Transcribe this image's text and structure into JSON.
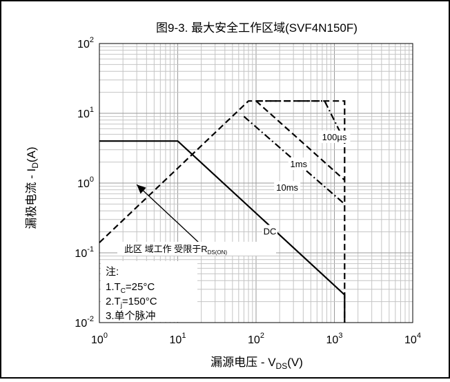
{
  "chart_data": {
    "type": "line",
    "title": "图9-3. 最大安全工作区域(SVF4N150F)",
    "xscale": "log",
    "yscale": "log",
    "xlim": [
      1,
      10000
    ],
    "ylim": [
      0.01,
      100
    ],
    "grid": true,
    "x_ticks": [
      {
        "value": 1,
        "base": "10",
        "exp": "0"
      },
      {
        "value": 10,
        "base": "10",
        "exp": "1"
      },
      {
        "value": 100,
        "base": "10",
        "exp": "2"
      },
      {
        "value": 1000,
        "base": "10",
        "exp": "3"
      },
      {
        "value": 10000,
        "base": "10",
        "exp": "4"
      }
    ],
    "y_ticks": [
      {
        "value": 0.01,
        "base": "10",
        "exp": "-2"
      },
      {
        "value": 0.1,
        "base": "10",
        "exp": "-1"
      },
      {
        "value": 1,
        "base": "10",
        "exp": "0"
      },
      {
        "value": 10,
        "base": "10",
        "exp": "1"
      },
      {
        "value": 100,
        "base": "10",
        "exp": "2"
      }
    ],
    "xlabel": {
      "pre": "漏源电压 - V",
      "sub": "DS",
      "post": "(V)"
    },
    "ylabel": {
      "pre": "漏极电流 - I",
      "sub": "D",
      "post": "(A)"
    },
    "series": [
      {
        "name": "DC",
        "style": "solid",
        "x": [
          1,
          10,
          1350,
          1350
        ],
        "y": [
          4,
          4,
          0.025,
          0.01
        ]
      },
      {
        "name": "10ms",
        "style": "dashdot",
        "x": [
          70,
          1350
        ],
        "y": [
          9,
          0.5
        ]
      },
      {
        "name": "1ms",
        "style": "dashed",
        "x": [
          100,
          1350
        ],
        "y": [
          15,
          1.1
        ]
      },
      {
        "name": "100µs",
        "style": "dashdot",
        "x": [
          100,
          750,
          1350
        ],
        "y": [
          15,
          15,
          4
        ]
      },
      {
        "name": "",
        "style": "dashed",
        "x": [
          1,
          80,
          1350,
          1350
        ],
        "y": [
          0.14,
          15,
          15,
          0.01
        ]
      }
    ],
    "annotations": [
      {
        "key": "label_100us",
        "text": "100µs",
        "x": 1000,
        "y": 4.5
      },
      {
        "key": "label_1ms",
        "text": "1ms",
        "x": 350,
        "y": 1.85
      },
      {
        "key": "label_10ms",
        "text": "10ms",
        "x": 250,
        "y": 0.85
      },
      {
        "key": "label_dc",
        "text": "DC",
        "x": 150,
        "y": 0.2
      }
    ],
    "rds_note": {
      "pre": "此区 域工作 受限于R",
      "sub": "DS(ON)",
      "arrow_from": [
        20,
        0.13
      ],
      "arrow_to": [
        3,
        0.95
      ]
    },
    "notes": {
      "heading": "注:",
      "lines": [
        {
          "pre": "1.T",
          "sub": "C",
          "post": "=25°C"
        },
        {
          "pre": "2.T",
          "sub": "j",
          "post": "=150°C"
        },
        {
          "pre": "3.单个脉冲",
          "sub": "",
          "post": ""
        }
      ]
    }
  }
}
